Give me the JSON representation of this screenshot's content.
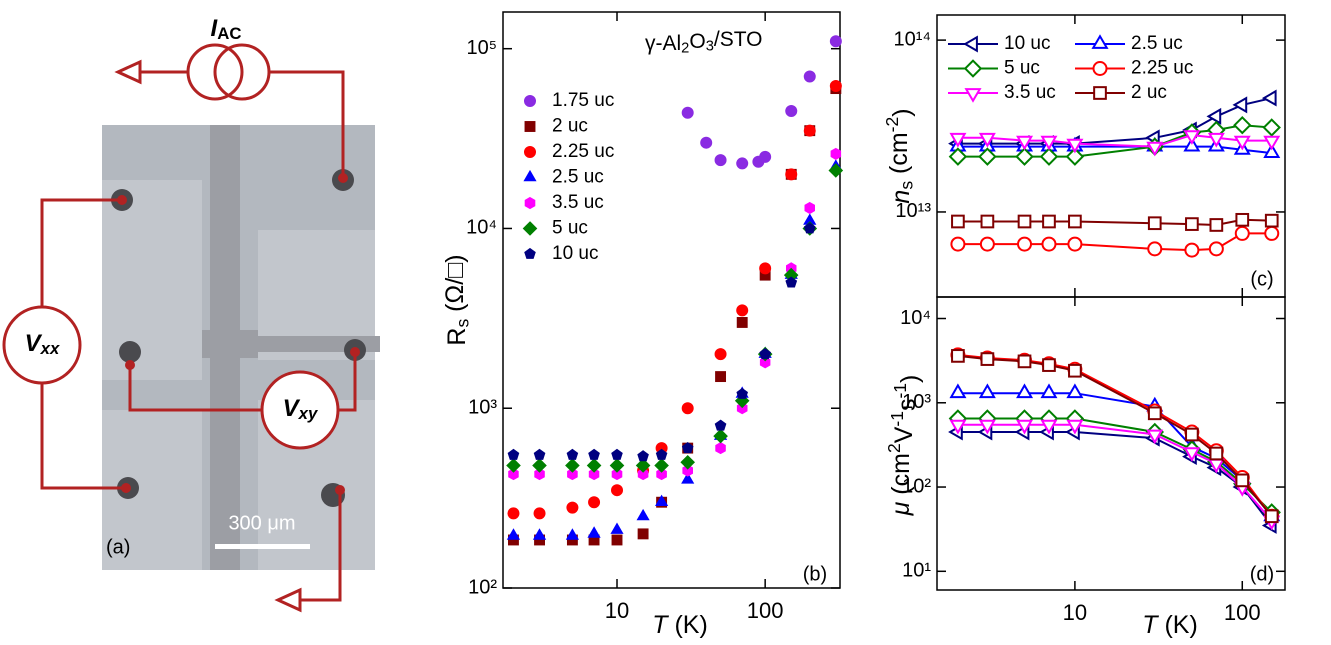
{
  "schematic": {
    "current_label": [
      {
        "text": "I",
        "italic": true
      },
      {
        "text": "AC",
        "pos": "sub"
      }
    ],
    "vxx_label": [
      {
        "text": "V",
        "italic": true
      },
      {
        "text": "xx",
        "pos": "sub",
        "italic": true
      }
    ],
    "vxy_label": [
      {
        "text": "V",
        "italic": true
      },
      {
        "text": "xy",
        "pos": "sub",
        "italic": true
      }
    ],
    "scale_bar": "300 μm",
    "panel_label": "(a)"
  },
  "chart_data": [
    {
      "type": "scatter",
      "title": [
        {
          "text": "γ-Al"
        },
        {
          "text": "2",
          "pos": "sub"
        },
        {
          "text": "O"
        },
        {
          "text": "3",
          "pos": "sub"
        },
        {
          "text": "/STO"
        }
      ],
      "xlabel": [
        {
          "text": "T",
          "italic": true
        },
        {
          "text": " (K)"
        }
      ],
      "ylabel": [
        {
          "text": "R"
        },
        {
          "text": "s",
          "pos": "sub"
        },
        {
          "text": " (Ω/□)"
        }
      ],
      "panel_label": "(b)",
      "xscale": "log",
      "yscale": "log",
      "xlim": [
        1.7,
        320
      ],
      "ylim": [
        100,
        160000
      ],
      "xticks": [
        10,
        100
      ],
      "yticks": [
        {
          "value": 100,
          "label": "10²"
        },
        {
          "value": 1000,
          "label": "10³"
        },
        {
          "value": 10000,
          "label": "10⁴"
        },
        {
          "value": 100000,
          "label": "10⁵"
        }
      ],
      "marker_fill": "filled",
      "line": false,
      "legend": "upper left",
      "legend_columns": 1,
      "series": [
        {
          "name": "1.75 uc",
          "color": "#8a2be2",
          "marker": "circle",
          "x": [
            30,
            40,
            50,
            70,
            90,
            100,
            150,
            200,
            300
          ],
          "values": [
            44000,
            30000,
            24000,
            23000,
            23500,
            25000,
            45000,
            70000,
            110000
          ]
        },
        {
          "name": "2 uc",
          "color": "#800000",
          "marker": "square",
          "x": [
            2,
            3,
            5,
            7,
            10,
            15,
            20,
            30,
            50,
            70,
            100,
            150,
            200,
            300
          ],
          "values": [
            185,
            185,
            185,
            185,
            185,
            200,
            300,
            600,
            1500,
            3000,
            5500,
            20000,
            35000,
            60000
          ]
        },
        {
          "name": "2.25 uc",
          "color": "#ff0000",
          "marker": "circle",
          "x": [
            2,
            3,
            5,
            7,
            10,
            15,
            20,
            30,
            50,
            70,
            100,
            150,
            200,
            300
          ],
          "values": [
            260,
            260,
            280,
            300,
            350,
            450,
            600,
            1000,
            2000,
            3500,
            6000,
            20000,
            35000,
            62000
          ]
        },
        {
          "name": "2.5 uc",
          "color": "#0000ff",
          "marker": "triangle-up",
          "x": [
            2,
            3,
            5,
            7,
            10,
            15,
            20,
            30,
            50,
            70,
            100,
            150,
            200,
            300
          ],
          "values": [
            195,
            195,
            195,
            200,
            210,
            250,
            300,
            400,
            700,
            1200,
            2000,
            5500,
            11000,
            22000
          ]
        },
        {
          "name": "3.5 uc",
          "color": "#ff00ff",
          "marker": "hexagon",
          "x": [
            2,
            3,
            5,
            7,
            10,
            15,
            20,
            30,
            50,
            70,
            100,
            150,
            200,
            300
          ],
          "values": [
            430,
            430,
            430,
            430,
            430,
            430,
            430,
            450,
            600,
            1000,
            1800,
            6000,
            13000,
            26000
          ]
        },
        {
          "name": "5 uc",
          "color": "#008000",
          "marker": "diamond",
          "x": [
            2,
            3,
            5,
            7,
            10,
            15,
            20,
            30,
            50,
            70,
            100,
            150,
            200,
            300
          ],
          "values": [
            480,
            480,
            480,
            480,
            480,
            480,
            480,
            500,
            700,
            1100,
            2000,
            5500,
            10000,
            21000
          ]
        },
        {
          "name": "10 uc",
          "color": "#000080",
          "marker": "pentagon",
          "x": [
            2,
            3,
            5,
            7,
            10,
            15,
            20,
            30,
            50,
            70,
            100,
            150,
            200
          ],
          "values": [
            550,
            550,
            550,
            550,
            550,
            540,
            550,
            600,
            800,
            1200,
            2000,
            5000,
            10000
          ]
        }
      ]
    },
    {
      "type": "line",
      "ylabel": [
        {
          "text": "n",
          "italic": true
        },
        {
          "text": "s",
          "pos": "sub"
        },
        {
          "text": " (cm"
        },
        {
          "text": "-2",
          "pos": "sup"
        },
        {
          "text": ")"
        }
      ],
      "panel_label": "(c)",
      "xscale": "log",
      "yscale": "log",
      "xlim": [
        1.5,
        180
      ],
      "ylim": [
        3200000000000,
        140000000000000
      ],
      "xticks": [
        10,
        100
      ],
      "xtick_labels": false,
      "yticks": [
        {
          "value": 10000000000000,
          "label": "10¹³"
        },
        {
          "value": 100000000000000,
          "label": "10¹⁴"
        }
      ],
      "marker_fill": "open",
      "line": true,
      "legend": "upper left",
      "legend_columns": 2,
      "x": [
        2,
        3,
        5,
        7,
        10,
        30,
        50,
        70,
        100,
        150
      ],
      "series": [
        {
          "name": "10 uc",
          "color": "#000080",
          "marker": "triangle-left",
          "values": [
            25000000000000,
            25000000000000,
            25000000000000,
            25000000000000,
            25000000000000,
            27000000000000,
            30000000000000,
            36000000000000,
            42000000000000,
            46000000000000
          ]
        },
        {
          "name": "2.5 uc",
          "color": "#0000ff",
          "marker": "triangle-up",
          "values": [
            24000000000000,
            24000000000000,
            24000000000000,
            24000000000000,
            24000000000000,
            24000000000000,
            24000000000000,
            24000000000000,
            23000000000000,
            22000000000000
          ]
        },
        {
          "name": "5 uc",
          "color": "#008000",
          "marker": "diamond",
          "values": [
            21000000000000,
            21000000000000,
            21000000000000,
            21000000000000,
            21000000000000,
            24000000000000,
            29000000000000,
            30000000000000,
            32000000000000,
            31000000000000
          ]
        },
        {
          "name": "2.25 uc",
          "color": "#ff0000",
          "marker": "circle",
          "values": [
            6500000000000,
            6500000000000,
            6500000000000,
            6500000000000,
            6500000000000,
            6100000000000,
            6000000000000,
            6100000000000,
            7500000000000,
            7500000000000
          ]
        },
        {
          "name": "3.5 uc",
          "color": "#ff00ff",
          "marker": "triangle-down",
          "values": [
            27000000000000,
            27000000000000,
            26000000000000,
            26000000000000,
            25000000000000,
            24000000000000,
            28000000000000,
            27000000000000,
            26000000000000,
            26000000000000
          ]
        },
        {
          "name": "2 uc",
          "color": "#800000",
          "marker": "square",
          "values": [
            8800000000000,
            8800000000000,
            8800000000000,
            8800000000000,
            8800000000000,
            8600000000000,
            8500000000000,
            8400000000000,
            9000000000000,
            8900000000000
          ]
        }
      ]
    },
    {
      "type": "line",
      "xlabel": [
        {
          "text": "T",
          "italic": true
        },
        {
          "text": " (K)"
        }
      ],
      "ylabel": [
        {
          "text": "μ",
          "italic": true
        },
        {
          "text": " (cm"
        },
        {
          "text": "2",
          "pos": "sup"
        },
        {
          "text": "V"
        },
        {
          "text": "-1",
          "pos": "sup"
        },
        {
          "text": "s"
        },
        {
          "text": "-1",
          "pos": "sup"
        },
        {
          "text": ")"
        }
      ],
      "panel_label": "(d)",
      "xscale": "log",
      "yscale": "log",
      "xlim": [
        1.5,
        180
      ],
      "ylim": [
        6,
        18000
      ],
      "xticks": [
        10,
        100
      ],
      "yticks": [
        {
          "value": 10,
          "label": "10¹"
        },
        {
          "value": 100,
          "label": "10²"
        },
        {
          "value": 1000,
          "label": "10³"
        },
        {
          "value": 10000,
          "label": "10⁴"
        }
      ],
      "marker_fill": "open",
      "line": true,
      "x": [
        2,
        3,
        5,
        7,
        10,
        30,
        50,
        70,
        100,
        150
      ],
      "series": [
        {
          "color": "#000080",
          "marker": "triangle-left",
          "values": [
            450,
            450,
            450,
            450,
            450,
            380,
            230,
            170,
            100,
            35
          ]
        },
        {
          "color": "#0000ff",
          "marker": "triangle-up",
          "values": [
            1300,
            1300,
            1300,
            1300,
            1300,
            900,
            300,
            220,
            120,
            45
          ]
        },
        {
          "color": "#008000",
          "marker": "diamond",
          "values": [
            650,
            650,
            650,
            650,
            650,
            450,
            280,
            200,
            110,
            50
          ]
        },
        {
          "color": "#ff0000",
          "marker": "circle",
          "values": [
            3700,
            3400,
            3200,
            2900,
            2500,
            800,
            450,
            270,
            130,
            45
          ]
        },
        {
          "color": "#ff00ff",
          "marker": "triangle-down",
          "values": [
            550,
            550,
            550,
            550,
            550,
            420,
            260,
            190,
            100,
            40
          ]
        },
        {
          "color": "#800000",
          "marker": "square",
          "values": [
            3600,
            3300,
            3100,
            2800,
            2400,
            750,
            420,
            250,
            120,
            45
          ]
        }
      ]
    }
  ]
}
